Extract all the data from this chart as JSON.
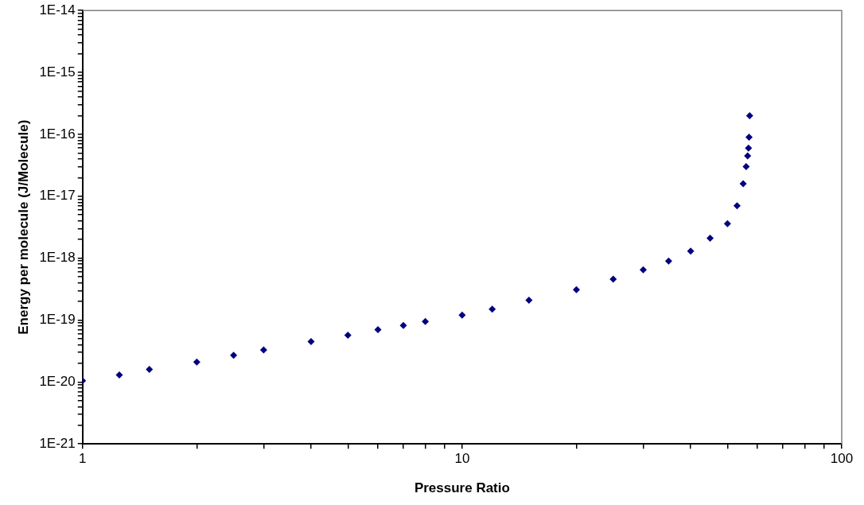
{
  "chart_data": {
    "type": "scatter",
    "xlabel": "Pressure Ratio",
    "ylabel": "Energy per molecule (J/Molecule)",
    "log": "xy",
    "grid": false,
    "legend": false,
    "marker": "diamond",
    "xlim": [
      1,
      100
    ],
    "ylim": [
      1e-21,
      1e-14
    ],
    "xticks": [
      1,
      {
        "value": 2,
        "label": null
      },
      {
        "value": 3,
        "label": null
      },
      {
        "value": 4,
        "label": null
      },
      {
        "value": 5,
        "label": null
      },
      {
        "value": 6,
        "label": null
      },
      {
        "value": 7,
        "label": null
      },
      {
        "value": 8,
        "label": null
      },
      {
        "value": 9,
        "label": null
      },
      10,
      {
        "value": 20,
        "label": null
      },
      {
        "value": 30,
        "label": null
      },
      {
        "value": 40,
        "label": null
      },
      {
        "value": 50,
        "label": null
      },
      {
        "value": 60,
        "label": null
      },
      {
        "value": 70,
        "label": null
      },
      {
        "value": 80,
        "label": null
      },
      {
        "value": 90,
        "label": null
      },
      100
    ],
    "yticks": [
      {
        "value": 1e-21,
        "label": "1E-21"
      },
      {
        "value": 2e-21,
        "label": null
      },
      {
        "value": 3e-21,
        "label": null
      },
      {
        "value": 4e-21,
        "label": null
      },
      {
        "value": 5e-21,
        "label": null
      },
      {
        "value": 6e-21,
        "label": null
      },
      {
        "value": 7e-21,
        "label": null
      },
      {
        "value": 8e-21,
        "label": null
      },
      {
        "value": 9e-21,
        "label": null
      },
      {
        "value": 1e-20,
        "label": "1E-20"
      },
      {
        "value": 2e-20,
        "label": null
      },
      {
        "value": 3e-20,
        "label": null
      },
      {
        "value": 4e-20,
        "label": null
      },
      {
        "value": 5e-20,
        "label": null
      },
      {
        "value": 6e-20,
        "label": null
      },
      {
        "value": 7e-20,
        "label": null
      },
      {
        "value": 8e-20,
        "label": null
      },
      {
        "value": 9e-20,
        "label": null
      },
      {
        "value": 1e-19,
        "label": "1E-19"
      },
      {
        "value": 2e-19,
        "label": null
      },
      {
        "value": 3e-19,
        "label": null
      },
      {
        "value": 4e-19,
        "label": null
      },
      {
        "value": 5e-19,
        "label": null
      },
      {
        "value": 6e-19,
        "label": null
      },
      {
        "value": 7e-19,
        "label": null
      },
      {
        "value": 8e-19,
        "label": null
      },
      {
        "value": 9e-19,
        "label": null
      },
      {
        "value": 1e-18,
        "label": "1E-18"
      },
      {
        "value": 2e-18,
        "label": null
      },
      {
        "value": 3e-18,
        "label": null
      },
      {
        "value": 4e-18,
        "label": null
      },
      {
        "value": 5e-18,
        "label": null
      },
      {
        "value": 6e-18,
        "label": null
      },
      {
        "value": 7e-18,
        "label": null
      },
      {
        "value": 8e-18,
        "label": null
      },
      {
        "value": 9e-18,
        "label": null
      },
      {
        "value": 1e-17,
        "label": "1E-17"
      },
      {
        "value": 2e-17,
        "label": null
      },
      {
        "value": 3e-17,
        "label": null
      },
      {
        "value": 4e-17,
        "label": null
      },
      {
        "value": 5e-17,
        "label": null
      },
      {
        "value": 6e-17,
        "label": null
      },
      {
        "value": 7e-17,
        "label": null
      },
      {
        "value": 8e-17,
        "label": null
      },
      {
        "value": 9e-17,
        "label": null
      },
      {
        "value": 1e-16,
        "label": "1E-16"
      },
      {
        "value": 2e-16,
        "label": null
      },
      {
        "value": 3e-16,
        "label": null
      },
      {
        "value": 4e-16,
        "label": null
      },
      {
        "value": 5e-16,
        "label": null
      },
      {
        "value": 6e-16,
        "label": null
      },
      {
        "value": 7e-16,
        "label": null
      },
      {
        "value": 8e-16,
        "label": null
      },
      {
        "value": 9e-16,
        "label": null
      },
      {
        "value": 1e-15,
        "label": "1E-15"
      },
      {
        "value": 2e-15,
        "label": null
      },
      {
        "value": 3e-15,
        "label": null
      },
      {
        "value": 4e-15,
        "label": null
      },
      {
        "value": 5e-15,
        "label": null
      },
      {
        "value": 6e-15,
        "label": null
      },
      {
        "value": 7e-15,
        "label": null
      },
      {
        "value": 8e-15,
        "label": null
      },
      {
        "value": 9e-15,
        "label": null
      },
      {
        "value": 1e-14,
        "label": "1E-14"
      }
    ],
    "series": [
      {
        "color": "#000080",
        "x": [
          1,
          1.25,
          1.5,
          2,
          2.5,
          3,
          4,
          5,
          6,
          7,
          8,
          10,
          12,
          15,
          20,
          25,
          30,
          35,
          40,
          45,
          50,
          53,
          55,
          56,
          56.5,
          56.8,
          57,
          57.2
        ],
        "values": [
          1.05e-20,
          1.3e-20,
          1.6e-20,
          2.1e-20,
          2.7e-20,
          3.3e-20,
          4.5e-20,
          5.7e-20,
          7e-20,
          8.2e-20,
          9.5e-20,
          1.2e-19,
          1.5e-19,
          2.1e-19,
          3.1e-19,
          4.6e-19,
          6.5e-19,
          9e-19,
          1.3e-18,
          2.1e-18,
          3.6e-18,
          7e-18,
          1.6e-17,
          3e-17,
          4.5e-17,
          6e-17,
          9e-17,
          2e-16
        ]
      }
    ]
  }
}
